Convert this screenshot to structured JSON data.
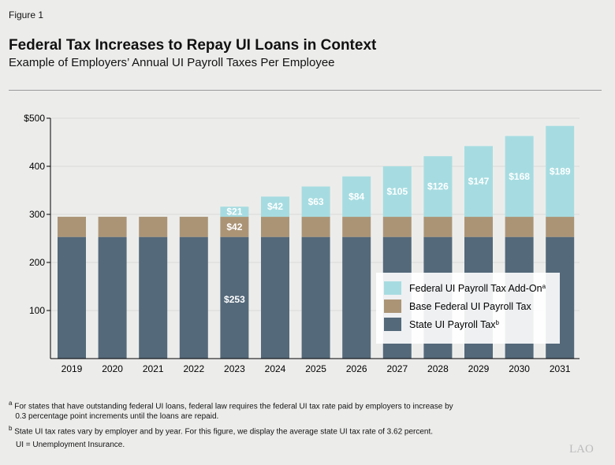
{
  "figure_label": "Figure 1",
  "title": "Federal Tax Increases to Repay UI Loans in Context",
  "subtitle": "Example of Employers’ Annual UI Payroll Taxes Per Employee",
  "chart_data": {
    "type": "bar",
    "stacked": true,
    "categories": [
      "2019",
      "2020",
      "2021",
      "2022",
      "2023",
      "2024",
      "2025",
      "2026",
      "2027",
      "2028",
      "2029",
      "2030",
      "2031"
    ],
    "series": [
      {
        "name": "State UI Payroll Tax",
        "sup": "b",
        "color": "#54697a",
        "values": [
          253,
          253,
          253,
          253,
          253,
          253,
          253,
          253,
          253,
          253,
          253,
          253,
          253
        ]
      },
      {
        "name": "Base Federal UI Payroll Tax",
        "sup": "",
        "color": "#ab9476",
        "values": [
          42,
          42,
          42,
          42,
          42,
          42,
          42,
          42,
          42,
          42,
          42,
          42,
          42
        ]
      },
      {
        "name": "Federal UI Payroll Tax Add-On",
        "sup": "a",
        "color": "#a6dce1",
        "values": [
          0,
          0,
          0,
          0,
          21,
          42,
          63,
          84,
          105,
          126,
          147,
          168,
          189
        ]
      }
    ],
    "data_labels": [
      {
        "series": 2,
        "from_index": 4,
        "format": "$"
      },
      {
        "series": 1,
        "index": 4,
        "format": "$"
      },
      {
        "series": 0,
        "index": 4,
        "format": "$"
      }
    ],
    "yticks": [
      "$500",
      "400",
      "300",
      "200",
      "100"
    ],
    "ytick_values": [
      500,
      400,
      300,
      200,
      100
    ],
    "ylim": [
      0,
      500
    ],
    "legend": "bottom-right",
    "grid": true
  },
  "footnotes": {
    "a_marker": "a",
    "a": "For states that have outstanding federal UI loans, federal law requires the federal UI tax rate paid by employers to increase by",
    "a2": "0.3 percentage point increments until the loans are repaid.",
    "b_marker": "b",
    "b": "State UI tax rates vary by employer and by year. For this figure, we display the average state UI tax rate of 3.62 percent.",
    "abbr": "UI = Unemployment Insurance."
  },
  "logo": "LAO"
}
